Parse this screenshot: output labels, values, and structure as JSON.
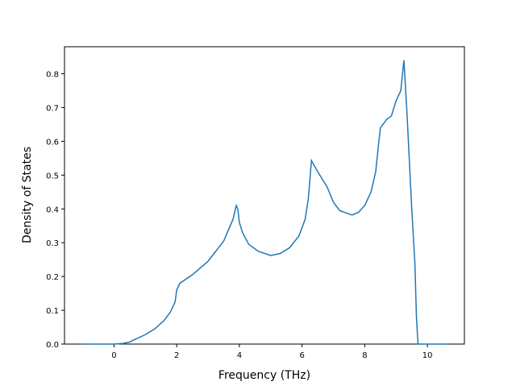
{
  "chart_data": {
    "type": "line",
    "xlabel": "Frequency (THz)",
    "ylabel": "Density of States",
    "x": [
      -1,
      0,
      0.3,
      0.5,
      0.7,
      1.0,
      1.3,
      1.6,
      1.8,
      1.95,
      2.0,
      2.1,
      2.5,
      3.0,
      3.5,
      3.8,
      3.9,
      3.95,
      4.0,
      4.1,
      4.3,
      4.6,
      5.0,
      5.3,
      5.6,
      5.9,
      6.1,
      6.2,
      6.3,
      6.5,
      6.8,
      7.0,
      7.2,
      7.5,
      7.6,
      7.8,
      8.0,
      8.2,
      8.35,
      8.45,
      8.5,
      8.7,
      8.85,
      9.0,
      9.15,
      9.25,
      9.35,
      9.5,
      9.6,
      9.65,
      9.7,
      10.6
    ],
    "series": [
      {
        "color": "#1f77b4",
        "values": [
          0,
          0,
          0.002,
          0.006,
          0.015,
          0.028,
          0.045,
          0.07,
          0.095,
          0.125,
          0.16,
          0.18,
          0.205,
          0.245,
          0.305,
          0.37,
          0.41,
          0.4,
          0.36,
          0.33,
          0.295,
          0.275,
          0.262,
          0.268,
          0.285,
          0.32,
          0.37,
          0.43,
          0.543,
          0.51,
          0.465,
          0.42,
          0.395,
          0.385,
          0.382,
          0.39,
          0.41,
          0.45,
          0.51,
          0.6,
          0.64,
          0.665,
          0.675,
          0.72,
          0.75,
          0.84,
          0.68,
          0.4,
          0.24,
          0.08,
          0,
          0
        ]
      }
    ],
    "xlim": [
      -1.58,
      11.18
    ],
    "ylim": [
      0,
      0.88
    ],
    "xticks": [
      0,
      2,
      4,
      6,
      8,
      10
    ],
    "yticks": [
      {
        "value": 0,
        "label": "0.0"
      },
      0.1,
      0.2,
      0.3,
      0.4,
      0.5,
      0.6,
      0.7,
      0.8
    ]
  }
}
